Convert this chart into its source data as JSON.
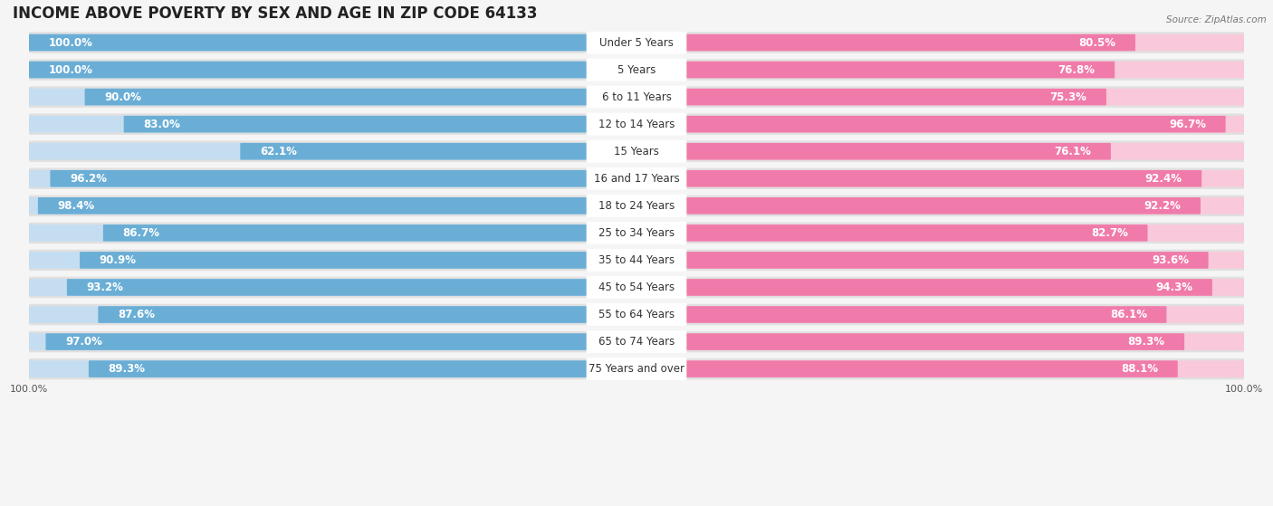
{
  "title": "INCOME ABOVE POVERTY BY SEX AND AGE IN ZIP CODE 64133",
  "source": "Source: ZipAtlas.com",
  "categories": [
    "Under 5 Years",
    "5 Years",
    "6 to 11 Years",
    "12 to 14 Years",
    "15 Years",
    "16 and 17 Years",
    "18 to 24 Years",
    "25 to 34 Years",
    "35 to 44 Years",
    "45 to 54 Years",
    "55 to 64 Years",
    "65 to 74 Years",
    "75 Years and over"
  ],
  "male_values": [
    100.0,
    100.0,
    90.0,
    83.0,
    62.1,
    96.2,
    98.4,
    86.7,
    90.9,
    93.2,
    87.6,
    97.0,
    89.3
  ],
  "female_values": [
    80.5,
    76.8,
    75.3,
    96.7,
    76.1,
    92.4,
    92.2,
    82.7,
    93.6,
    94.3,
    86.1,
    89.3,
    88.1
  ],
  "male_color": "#6aaed6",
  "male_light_color": "#c5ddf0",
  "female_color": "#f07baa",
  "female_light_color": "#f9c8da",
  "row_bg_color": "#e0e0e0",
  "label_bg_color": "#ffffff",
  "background_color": "#f5f5f5",
  "title_fontsize": 12,
  "value_fontsize": 8.5,
  "cat_fontsize": 8.5,
  "axis_max": 100.0
}
